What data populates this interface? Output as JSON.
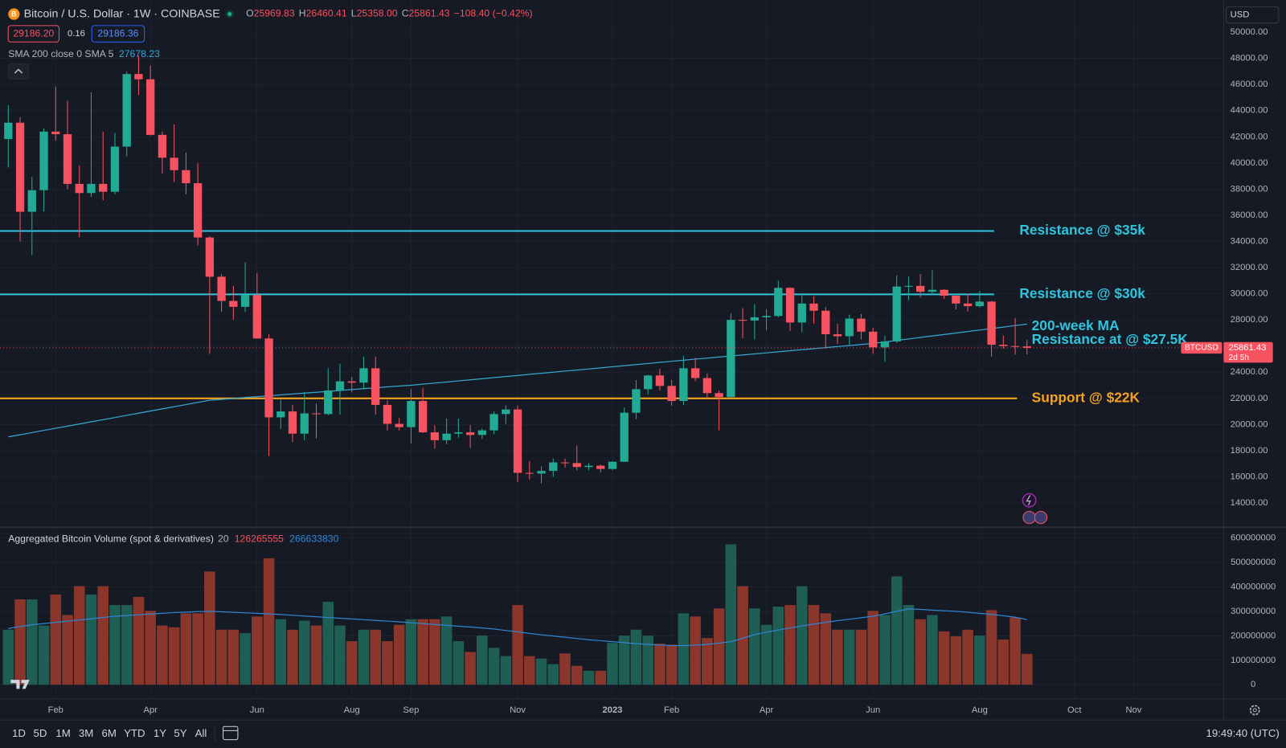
{
  "header": {
    "ohlc": [
      {
        "key": "O",
        "value": "25969.83"
      },
      {
        "key": "H",
        "value": "26460.41"
      },
      {
        "key": "L",
        "value": "25358.00"
      },
      {
        "key": "C",
        "value": "25861.43"
      }
    ],
    "change": "−108.40 (−0.42%)",
    "boxes": [
      "29186.20",
      "0.16",
      "29186.36"
    ],
    "currency": "USD"
  },
  "toolbar": {
    "ranges": [
      "1D",
      "5D",
      "1M",
      "3M",
      "6M",
      "YTD",
      "1Y",
      "5Y",
      "All"
    ],
    "clock": "19:49:40 (UTC)"
  },
  "chart_data": [
    {
      "type": "candlestick",
      "title": "Bitcoin / U.S. Dollar · 1W · COINBASE",
      "up_color": "#22ab94",
      "down_color": "#f7525f",
      "open": [
        41830,
        43080,
        36270,
        37920,
        42400,
        42200,
        38400,
        37700,
        38400,
        37800,
        41250,
        46800,
        46400,
        42150,
        40400,
        39450,
        38450,
        34300,
        31300,
        29450,
        29000,
        29900,
        26580,
        20550,
        21000,
        19300,
        20850,
        20800,
        22600,
        23300,
        23200,
        24300,
        21500,
        20050,
        19800,
        21800,
        19400,
        18800,
        19300,
        19400,
        19200,
        19550,
        20800,
        21150,
        16300,
        16250,
        16450,
        17100,
        17050,
        16750,
        16850,
        16600,
        17150,
        20900,
        22700,
        23750,
        22950,
        21800,
        24300,
        23550,
        22400,
        22100,
        28000,
        27950,
        28200,
        28300,
        30450,
        27800,
        29250,
        28700,
        26900,
        26750,
        28100,
        27100,
        25900,
        26350,
        30550,
        30600,
        30150,
        30300,
        29850,
        29250,
        29050,
        29400,
        26100,
        26000,
        25969.83
      ],
      "high": [
        44420,
        43500,
        38920,
        42650,
        45850,
        44750,
        39800,
        45400,
        42400,
        42300,
        47000,
        48200,
        47450,
        42400,
        42950,
        40800,
        40000,
        34400,
        31500,
        30600,
        32400,
        31600,
        26900,
        21900,
        21500,
        22500,
        21600,
        24300,
        24650,
        23650,
        25200,
        25200,
        21850,
        20500,
        22700,
        22800,
        19950,
        20450,
        20450,
        19950,
        19700,
        21000,
        21450,
        21450,
        17200,
        16800,
        17400,
        17400,
        18400,
        17050,
        16950,
        17200,
        21300,
        23400,
        23800,
        24250,
        23400,
        25250,
        25100,
        23900,
        22600,
        28500,
        28900,
        29200,
        28800,
        31000,
        30500,
        30050,
        29800,
        29000,
        27700,
        28400,
        28450,
        27400,
        26800,
        31400,
        31300,
        31500,
        31800,
        30350,
        29950,
        30000,
        30200,
        29450,
        26800,
        28150,
        26460.41
      ],
      "low": [
        39650,
        34000,
        32950,
        36300,
        41700,
        38000,
        34320,
        37400,
        37150,
        37600,
        40500,
        45200,
        42100,
        39200,
        38550,
        37600,
        33700,
        25400,
        28600,
        28000,
        28600,
        26550,
        17600,
        19650,
        18650,
        18800,
        18950,
        20700,
        20750,
        22450,
        22700,
        20750,
        19550,
        19550,
        18550,
        19350,
        18150,
        18500,
        19000,
        18200,
        18900,
        19250,
        20050,
        15600,
        15800,
        15500,
        16000,
        16700,
        16500,
        16500,
        16350,
        16500,
        17150,
        20400,
        22300,
        22600,
        21450,
        21500,
        23300,
        21950,
        19550,
        22000,
        26600,
        26500,
        27200,
        28200,
        27150,
        27050,
        27700,
        25800,
        26150,
        26100,
        26500,
        25400,
        24800,
        26250,
        29500,
        29700,
        29950,
        29600,
        28800,
        28650,
        28950,
        25200,
        25800,
        25350,
        25358
      ],
      "close": [
        43080,
        36270,
        37920,
        42400,
        42200,
        38400,
        37700,
        38400,
        37800,
        41250,
        46800,
        46400,
        42150,
        40400,
        39450,
        38450,
        34300,
        31300,
        29450,
        29000,
        29900,
        26580,
        20550,
        21000,
        19300,
        20850,
        20800,
        22600,
        23300,
        23200,
        24300,
        21500,
        20050,
        19800,
        21800,
        19400,
        18800,
        19300,
        19400,
        19200,
        19550,
        20800,
        21150,
        16300,
        16250,
        16450,
        17100,
        17050,
        16750,
        16850,
        16600,
        17150,
        20900,
        22700,
        23750,
        22950,
        21800,
        24300,
        23550,
        22400,
        22100,
        28000,
        27950,
        28200,
        28300,
        30450,
        27800,
        29250,
        28700,
        26900,
        26750,
        28100,
        27100,
        25900,
        26350,
        30550,
        30600,
        30150,
        30300,
        29850,
        29250,
        29050,
        29400,
        26100,
        26000,
        25969.83,
        25861.43
      ],
      "sma": {
        "name": "SMA 200 close 0 SMA 5",
        "color": "#35a9d4",
        "values": [
          19050,
          19215,
          19380,
          19545,
          19710,
          19875,
          20040,
          20205,
          20370,
          20535,
          20700,
          20865,
          21030,
          21195,
          21360,
          21525,
          21690,
          21855,
          21920,
          21990,
          22060,
          22125,
          22195,
          22260,
          22330,
          22400,
          22465,
          22535,
          22600,
          22670,
          22740,
          22805,
          22875,
          22940,
          23000,
          23085,
          23165,
          23250,
          23335,
          23415,
          23500,
          23585,
          23665,
          23750,
          23835,
          23915,
          24000,
          24085,
          24165,
          24250,
          24335,
          24415,
          24500,
          24585,
          24665,
          24750,
          24835,
          24915,
          25000,
          25080,
          25160,
          25240,
          25320,
          25400,
          25480,
          25560,
          25640,
          25720,
          25800,
          25880,
          25960,
          26040,
          26120,
          26200,
          26315,
          26430,
          26540,
          26655,
          26770,
          26880,
          26995,
          27110,
          27225,
          27340,
          27450,
          27565,
          27678.23
        ]
      },
      "levels": [
        {
          "label": "Resistance @ $35k",
          "value": 34800,
          "color": "#2ec5dd"
        },
        {
          "label": "Resistance @ $30k",
          "value": 29950,
          "color": "#2ec5dd"
        },
        {
          "label": "Support @ $22K",
          "value": 22000,
          "color": "#f5a21e"
        }
      ],
      "notes": [
        "200-week MA",
        "Resistance at @ $27.5K"
      ],
      "notes_color": "#2ec5dd",
      "symbol_tag": "BTCUSD",
      "countdown": "2d 5h",
      "ylim": [
        12200,
        51950
      ],
      "yticks": [
        {
          "value": 14000,
          "label": "14000.00"
        },
        {
          "value": 16000,
          "label": "16000.00"
        },
        {
          "value": 18000,
          "label": "18000.00"
        },
        {
          "value": 20000,
          "label": "20000.00"
        },
        {
          "value": 22000,
          "label": "22000.00"
        },
        {
          "value": 24000,
          "label": "24000.00"
        },
        {
          "value": 26000,
          "label": "26000.00"
        },
        {
          "value": 28000,
          "label": "28000.00"
        },
        {
          "value": 30000,
          "label": "30000.00"
        },
        {
          "value": 32000,
          "label": "32000.00"
        },
        {
          "value": 34000,
          "label": "34000.00"
        },
        {
          "value": 36000,
          "label": "36000.00"
        },
        {
          "value": 38000,
          "label": "38000.00"
        },
        {
          "value": 40000,
          "label": "40000.00"
        },
        {
          "value": 42000,
          "label": "42000.00"
        },
        {
          "value": 44000,
          "label": "44000.00"
        },
        {
          "value": 46000,
          "label": "46000.00"
        },
        {
          "value": 48000,
          "label": "48000.00"
        },
        {
          "value": 50000,
          "label": "50000.00"
        }
      ],
      "xlim": [
        -0.7,
        102.6
      ],
      "xticks": [
        {
          "value": 4,
          "label": "Feb"
        },
        {
          "value": 12,
          "label": "Apr"
        },
        {
          "value": 21,
          "label": "Jun"
        },
        {
          "value": 29,
          "label": "Aug"
        },
        {
          "value": 34,
          "label": "Sep"
        },
        {
          "value": 43,
          "label": "Nov"
        },
        {
          "value": 51,
          "label": "2023"
        },
        {
          "value": 56,
          "label": "Feb"
        },
        {
          "value": 64,
          "label": "Apr"
        },
        {
          "value": 73,
          "label": "Jun"
        },
        {
          "value": 82,
          "label": "Aug"
        },
        {
          "value": 90,
          "label": "Oct"
        },
        {
          "value": 95,
          "label": "Nov"
        }
      ],
      "grid": true
    },
    {
      "type": "bar",
      "title": "Aggregated Bitcoin Volume (spot & derivatives)",
      "up_color": "#1f5e54",
      "down_color": "#8a362b",
      "values": [
        225000000,
        349000000,
        349000000,
        242000000,
        369000000,
        285000000,
        403000000,
        369000000,
        403000000,
        326000000,
        326000000,
        359000000,
        302000000,
        242000000,
        235000000,
        292000000,
        292000000,
        463000000,
        225000000,
        225000000,
        211000000,
        279000000,
        517000000,
        268000000,
        225000000,
        262000000,
        242000000,
        339000000,
        242000000,
        178000000,
        225000000,
        225000000,
        178000000,
        245000000,
        268000000,
        268000000,
        268000000,
        279000000,
        178000000,
        134000000,
        201000000,
        151000000,
        117000000,
        326000000,
        117000000,
        107000000,
        84000000,
        128000000,
        77000000,
        57000000,
        57000000,
        171000000,
        201000000,
        225000000,
        201000000,
        168000000,
        164000000,
        292000000,
        279000000,
        191000000,
        312000000,
        574000000,
        403000000,
        312000000,
        245000000,
        319000000,
        326000000,
        403000000,
        326000000,
        292000000,
        225000000,
        225000000,
        225000000,
        302000000,
        285000000,
        443000000,
        326000000,
        268000000,
        285000000,
        218000000,
        198000000,
        225000000,
        201000000,
        305000000,
        185000000,
        275000000,
        126265555
      ],
      "sma": {
        "length": 20,
        "color": "#2f86d6",
        "values": [
          230000000,
          238000000,
          245000000,
          250000000,
          255000000,
          260000000,
          265000000,
          270000000,
          275000000,
          280000000,
          283000000,
          286000000,
          289000000,
          292000000,
          295000000,
          297000000,
          299000000,
          300000000,
          298000000,
          296000000,
          294000000,
          292000000,
          290000000,
          287000000,
          284000000,
          281000000,
          278000000,
          275000000,
          272000000,
          269000000,
          266000000,
          263000000,
          260000000,
          257000000,
          253000000,
          250000000,
          246000000,
          243000000,
          239000000,
          236000000,
          232000000,
          228000000,
          222000000,
          216000000,
          210000000,
          204000000,
          199000000,
          194000000,
          189000000,
          184000000,
          180000000,
          176000000,
          172000000,
          168000000,
          165000000,
          162000000,
          160000000,
          160000000,
          162000000,
          165000000,
          170000000,
          176000000,
          190000000,
          205000000,
          215000000,
          224000000,
          232000000,
          240000000,
          248000000,
          255000000,
          262000000,
          268000000,
          274000000,
          280000000,
          290000000,
          300000000,
          310000000,
          308000000,
          305000000,
          302000000,
          300000000,
          296000000,
          292000000,
          288000000,
          282000000,
          276000000,
          266633830
        ]
      },
      "ylim": [
        -57000000,
        637000000
      ],
      "yticks": [
        0,
        100000000,
        200000000,
        300000000,
        400000000,
        500000000,
        600000000
      ]
    }
  ]
}
